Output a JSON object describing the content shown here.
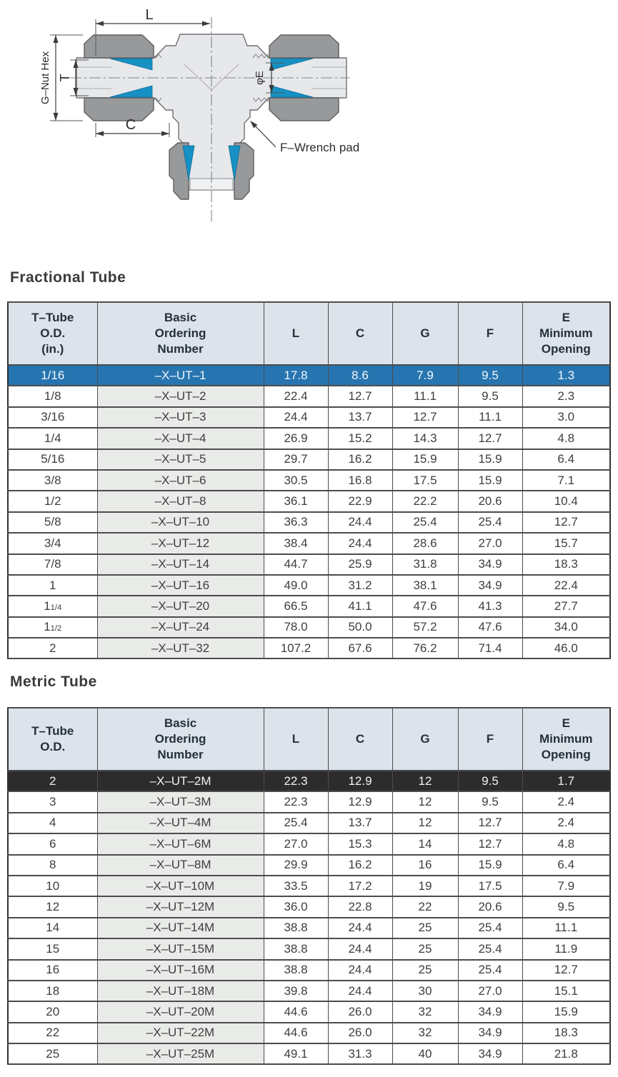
{
  "colors": {
    "header_bg": "#dce3ea",
    "blue_row_bg": "#2775b0",
    "dark_row_bg": "#2d2c2c",
    "ordering_col_bg": "#e9ebe8",
    "ferrule_blue": "#1791c4",
    "nut_gray": "#98999b",
    "body_gray": "#e7e8ea"
  },
  "diagram": {
    "labels": {
      "l": "L",
      "g_nut_hex": "G–Nut Hex",
      "t": "T",
      "c": "C",
      "phi_e": "φE",
      "f_wrench_pad": "F–Wrench pad"
    }
  },
  "fractional": {
    "title": "Fractional Tube",
    "headers": [
      "T–Tube\nO.D.\n(in.)",
      "Basic\nOrdering\nNumber",
      "L",
      "C",
      "G",
      "F",
      "E\nMinimum\nOpening"
    ],
    "highlight_row": 0,
    "highlight_style": "blue",
    "rows": [
      [
        "1/16",
        "–X–UT–1",
        "17.8",
        "8.6",
        "7.9",
        "9.5",
        "1.3"
      ],
      [
        "1/8",
        "–X–UT–2",
        "22.4",
        "12.7",
        "11.1",
        "9.5",
        "2.3"
      ],
      [
        "3/16",
        "–X–UT–3",
        "24.4",
        "13.7",
        "12.7",
        "11.1",
        "3.0"
      ],
      [
        "1/4",
        "–X–UT–4",
        "26.9",
        "15.2",
        "14.3",
        "12.7",
        "4.8"
      ],
      [
        "5/16",
        "–X–UT–5",
        "29.7",
        "16.2",
        "15.9",
        "15.9",
        "6.4"
      ],
      [
        "3/8",
        "–X–UT–6",
        "30.5",
        "16.8",
        "17.5",
        "15.9",
        "7.1"
      ],
      [
        "1/2",
        "–X–UT–8",
        "36.1",
        "22.9",
        "22.2",
        "20.6",
        "10.4"
      ],
      [
        "5/8",
        "–X–UT–10",
        "36.3",
        "24.4",
        "25.4",
        "25.4",
        "12.7"
      ],
      [
        "3/4",
        "–X–UT–12",
        "38.4",
        "24.4",
        "28.6",
        "27.0",
        "15.7"
      ],
      [
        "7/8",
        "–X–UT–14",
        "44.7",
        "25.9",
        "31.8",
        "34.9",
        "18.3"
      ],
      [
        "1",
        "–X–UT–16",
        "49.0",
        "31.2",
        "38.1",
        "34.9",
        "22.4"
      ],
      [
        "1 1/4",
        "–X–UT–20",
        "66.5",
        "41.1",
        "47.6",
        "41.3",
        "27.7"
      ],
      [
        "1 1/2",
        "–X–UT–24",
        "78.0",
        "50.0",
        "57.2",
        "47.6",
        "34.0"
      ],
      [
        "2",
        "–X–UT–32",
        "107.2",
        "67.6",
        "76.2",
        "71.4",
        "46.0"
      ]
    ]
  },
  "metric": {
    "title": "Metric Tube",
    "headers": [
      "T–Tube\nO.D.",
      "Basic\nOrdering\nNumber",
      "L",
      "C",
      "G",
      "F",
      "E\nMinimum\nOpening"
    ],
    "highlight_row": 0,
    "highlight_style": "dark",
    "rows": [
      [
        "2",
        "–X–UT–2M",
        "22.3",
        "12.9",
        "12",
        "9.5",
        "1.7"
      ],
      [
        "3",
        "–X–UT–3M",
        "22.3",
        "12.9",
        "12",
        "9.5",
        "2.4"
      ],
      [
        "4",
        "–X–UT–4M",
        "25.4",
        "13.7",
        "12",
        "12.7",
        "2.4"
      ],
      [
        "6",
        "–X–UT–6M",
        "27.0",
        "15.3",
        "14",
        "12.7",
        "4.8"
      ],
      [
        "8",
        "–X–UT–8M",
        "29.9",
        "16.2",
        "16",
        "15.9",
        "6.4"
      ],
      [
        "10",
        "–X–UT–10M",
        "33.5",
        "17.2",
        "19",
        "17.5",
        "7.9"
      ],
      [
        "12",
        "–X–UT–12M",
        "36.0",
        "22.8",
        "22",
        "20.6",
        "9.5"
      ],
      [
        "14",
        "–X–UT–14M",
        "38.8",
        "24.4",
        "25",
        "25.4",
        "11.1"
      ],
      [
        "15",
        "–X–UT–15M",
        "38.8",
        "24.4",
        "25",
        "25.4",
        "11.9"
      ],
      [
        "16",
        "–X–UT–16M",
        "38.8",
        "24.4",
        "25",
        "25.4",
        "12.7"
      ],
      [
        "18",
        "–X–UT–18M",
        "39.8",
        "24.4",
        "30",
        "27.0",
        "15.1"
      ],
      [
        "20",
        "–X–UT–20M",
        "44.6",
        "26.0",
        "32",
        "34.9",
        "15.9"
      ],
      [
        "22",
        "–X–UT–22M",
        "44.6",
        "26.0",
        "32",
        "34.9",
        "18.3"
      ],
      [
        "25",
        "–X–UT–25M",
        "49.1",
        "31.3",
        "40",
        "34.9",
        "21.8"
      ]
    ]
  }
}
